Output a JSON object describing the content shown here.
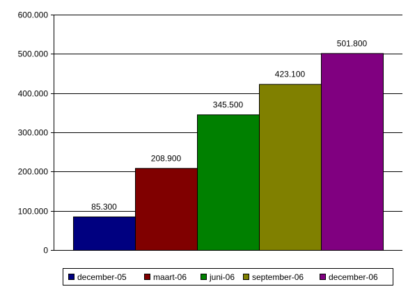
{
  "chart_data": {
    "type": "bar",
    "title": "",
    "xlabel": "",
    "ylabel": "",
    "ylim": [
      0,
      600000
    ],
    "y_ticks": [
      0,
      100000,
      200000,
      300000,
      400000,
      500000,
      600000
    ],
    "y_tick_labels": [
      "0",
      "100.000",
      "200.000",
      "300.000",
      "400.000",
      "500.000",
      "600.000"
    ],
    "grid": "horizontal",
    "legend_position": "bottom",
    "series": [
      {
        "name": "december-05",
        "value": 85300,
        "label": "85.300",
        "color": "#000080"
      },
      {
        "name": "maart-06",
        "value": 208900,
        "label": "208.900",
        "color": "#800000"
      },
      {
        "name": "juni-06",
        "value": 345500,
        "label": "345.500",
        "color": "#008000"
      },
      {
        "name": "september-06",
        "value": 423100,
        "label": "423.100",
        "color": "#808000"
      },
      {
        "name": "december-06",
        "value": 501800,
        "label": "501.800",
        "color": "#800080"
      }
    ]
  }
}
